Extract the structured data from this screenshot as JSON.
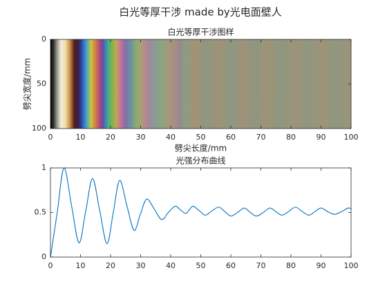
{
  "title": "白光等厚干涉 made by光电面壁人",
  "chart_data": [
    {
      "type": "image",
      "title": "白光等厚干涉图样",
      "xlabel": "劈尖长度/mm",
      "ylabel": "劈尖宽度/mm",
      "xlim": [
        0,
        100
      ],
      "xticks": [
        0,
        10,
        20,
        30,
        40,
        50,
        60,
        70,
        80,
        90,
        100
      ],
      "ylim": [
        0,
        100
      ],
      "yticks": [
        0,
        50,
        100
      ],
      "yreverse": true,
      "x": [
        0,
        1,
        2,
        3.5,
        5,
        6.5,
        8,
        9.5,
        10.5,
        12,
        13.5,
        15,
        16.5,
        17.5,
        19,
        20.5,
        22,
        23.5,
        25,
        27,
        28.5,
        30,
        31.5,
        33,
        35,
        37,
        39,
        41,
        43,
        45,
        48,
        52,
        56,
        60,
        64,
        68,
        72,
        77,
        81,
        86,
        90,
        95,
        100
      ],
      "colors": [
        "#000000",
        "#303030",
        "#8a8a80",
        "#f0ece0",
        "#f3dfa0",
        "#c98a50",
        "#4a2010",
        "#3a2060",
        "#3050b0",
        "#3fa6c8",
        "#c8c440",
        "#d38040",
        "#a84488",
        "#6052a8",
        "#3aa8a0",
        "#7cb840",
        "#c8a060",
        "#c47098",
        "#8070a8",
        "#6c96a0",
        "#8aae6c",
        "#a8a078",
        "#b48a8c",
        "#9e8a9e",
        "#889e92",
        "#8aa47e",
        "#a49a7c",
        "#a89080",
        "#968a8e",
        "#8c9c82",
        "#a49276",
        "#8e9682",
        "#a09278",
        "#8c9882",
        "#a09278",
        "#8e9680",
        "#9e9478",
        "#8e9680",
        "#9e9478",
        "#909680",
        "#9e9478",
        "#909680",
        "#9c9478"
      ]
    },
    {
      "type": "line",
      "title": "光强分布曲线",
      "xlim": [
        0,
        100
      ],
      "xticks": [
        0,
        10,
        20,
        30,
        40,
        50,
        60,
        70,
        80,
        90,
        100
      ],
      "ylim": [
        0,
        1
      ],
      "yticks": [
        0,
        0.5,
        1
      ],
      "series": [
        {
          "color": "#0072bd",
          "x": [
            0,
            2.25,
            4.5,
            7,
            9.5,
            11.75,
            14,
            16.4,
            18.8,
            20.9,
            23,
            25.4,
            27.8,
            29.9,
            32,
            34.5,
            37,
            39.2,
            41.5,
            43.2,
            45,
            46.2,
            47.5,
            49.5,
            51.5,
            53.8,
            56,
            58,
            60,
            62.2,
            64.5,
            66.5,
            68.5,
            70.8,
            73,
            75,
            77,
            79.2,
            81.5,
            83.8,
            86,
            88,
            90,
            92.2,
            94.5,
            96.8,
            99,
            100
          ],
          "values": [
            0,
            0.5,
            1,
            0.58,
            0.16,
            0.52,
            0.88,
            0.52,
            0.15,
            0.5,
            0.86,
            0.58,
            0.3,
            0.48,
            0.65,
            0.54,
            0.42,
            0.5,
            0.57,
            0.53,
            0.49,
            0.53,
            0.57,
            0.52,
            0.47,
            0.52,
            0.56,
            0.51,
            0.46,
            0.5,
            0.55,
            0.5,
            0.46,
            0.5,
            0.55,
            0.51,
            0.47,
            0.51,
            0.56,
            0.51,
            0.47,
            0.51,
            0.55,
            0.51,
            0.48,
            0.51,
            0.55,
            0.54
          ]
        }
      ]
    }
  ]
}
